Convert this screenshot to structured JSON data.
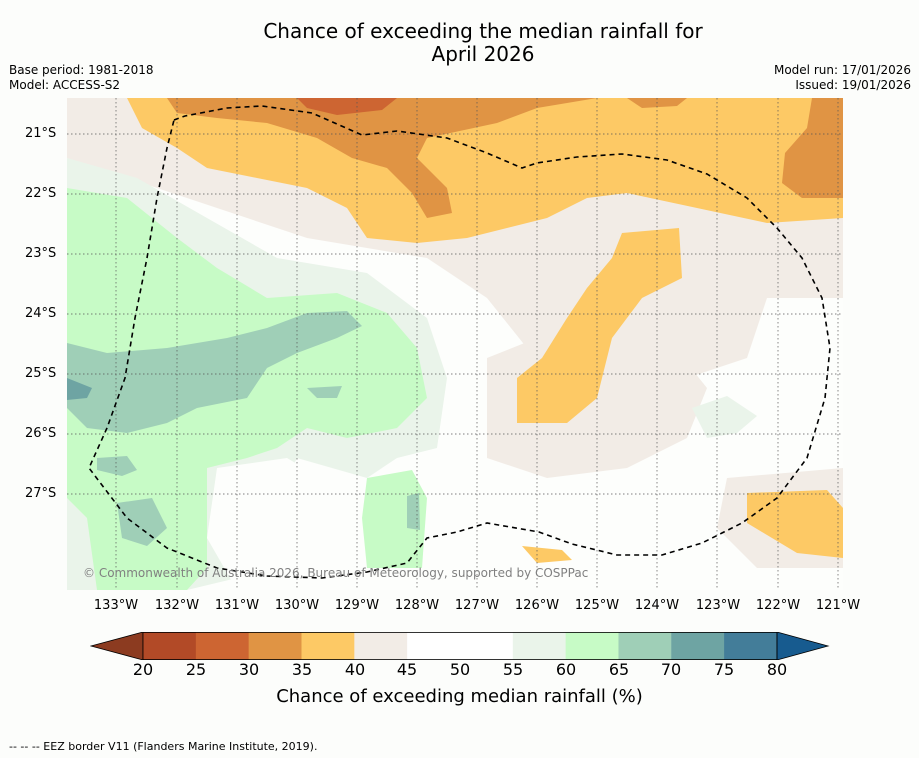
{
  "title": {
    "line1": "Chance of exceeding the median rainfall for",
    "line2": "April 2026"
  },
  "meta": {
    "base_period": "Base period: 1981-2018",
    "model": "Model: ACCESS-S2",
    "model_run": "Model run: 17/01/2026",
    "issued": "Issued: 19/01/2026"
  },
  "map": {
    "lat_labels": [
      "21°S",
      "22°S",
      "23°S",
      "24°S",
      "25°S",
      "26°S",
      "27°S"
    ],
    "lon_labels": [
      "133°W",
      "132°W",
      "131°W",
      "130°W",
      "129°W",
      "128°W",
      "127°W",
      "126°W",
      "125°W",
      "124°W",
      "123°W",
      "122°W",
      "121°W"
    ],
    "copyright": "© Commonwealth of Australia 2026, Bureau of Meteorology, supported by COSPPac"
  },
  "colorbar": {
    "ticks": [
      "20",
      "25",
      "30",
      "35",
      "40",
      "45",
      "50",
      "55",
      "60",
      "65",
      "70",
      "75",
      "80"
    ],
    "colors": [
      "#8c3b20",
      "#b24a27",
      "#cd6532",
      "#e09444",
      "#fdc965",
      "#f2ece6",
      "#ffffff",
      "#ffffff",
      "#eaf4ea",
      "#c7fbc6",
      "#9fcfb7",
      "#6ea4a3",
      "#437d99",
      "#175b8f"
    ],
    "label": "Chance of exceeding median rainfall (%)"
  },
  "footer": {
    "legend": "--  --  -- EEZ border V11 (Flanders Marine Institute, 2019)."
  }
}
